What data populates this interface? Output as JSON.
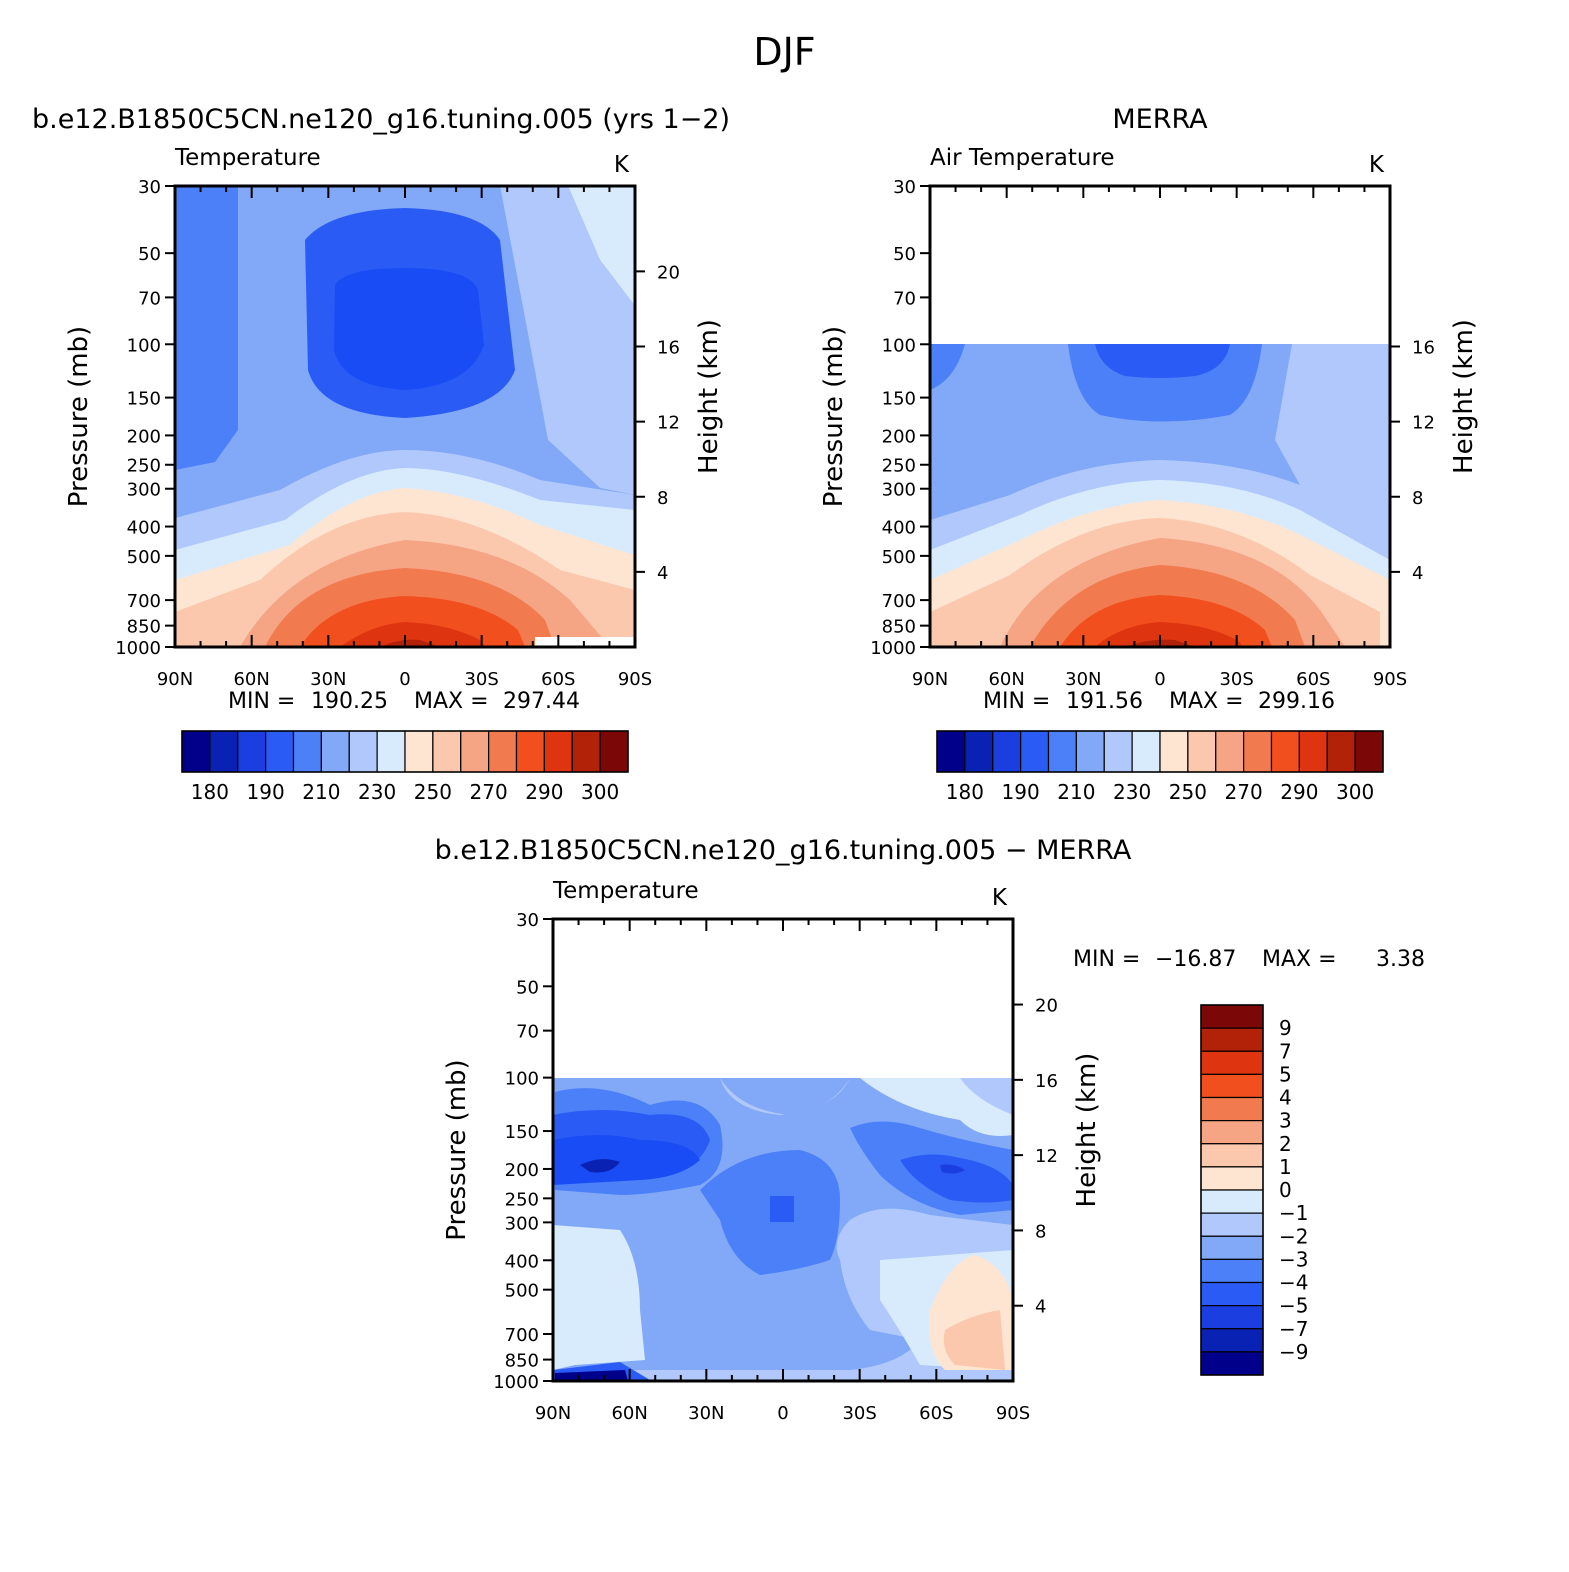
{
  "page_title": "DJF",
  "chart_data": [
    {
      "id": "model",
      "type": "heatmap",
      "subtitle": "b.e12.B1850C5CN.ne120_g16.tuning.005 (yrs 1-2)",
      "title": "Temperature",
      "units": "K",
      "xlabel": "",
      "ylabel": "Pressure (mb)",
      "y2label": "Height (km)",
      "x_ticks": [
        "90N",
        "60N",
        "30N",
        "0",
        "30S",
        "60S",
        "90S"
      ],
      "y_ticks": [
        30,
        50,
        70,
        100,
        150,
        200,
        250,
        300,
        400,
        500,
        700,
        850,
        1000
      ],
      "y2_ticks": [
        20,
        16,
        12,
        8,
        4
      ],
      "ylim": [
        30,
        1000
      ],
      "stats": {
        "min_label": "MIN =",
        "min": "190.25",
        "max_label": "MAX =",
        "max": "297.44"
      },
      "colorbar": {
        "orientation": "horizontal",
        "levels": [
          180,
          190,
          210,
          230,
          250,
          270,
          290,
          300
        ],
        "colors": [
          "#00008a",
          "#0a22b4",
          "#1a3ee0",
          "#2a5cf5",
          "#4c80f8",
          "#82a8f8",
          "#b0c8fc",
          "#d8ebfd",
          "#fde5d2",
          "#fbc8ae",
          "#f5a484",
          "#f27a4f",
          "#f24f1e",
          "#de3510",
          "#b22208",
          "#7c0707"
        ]
      }
    },
    {
      "id": "obs",
      "type": "heatmap",
      "subtitle": "MERRA",
      "title": "Air Temperature",
      "units": "K",
      "xlabel": "",
      "ylabel": "Pressure (mb)",
      "y2label": "Height (km)",
      "x_ticks": [
        "90N",
        "60N",
        "30N",
        "0",
        "30S",
        "60S",
        "90S"
      ],
      "y_ticks": [
        30,
        50,
        70,
        100,
        150,
        200,
        250,
        300,
        400,
        500,
        700,
        850,
        1000
      ],
      "y2_ticks": [
        16,
        12,
        8,
        4
      ],
      "ylim": [
        30,
        1000
      ],
      "data_top_pressure": 100,
      "stats": {
        "min_label": "MIN =",
        "min": "191.56",
        "max_label": "MAX =",
        "max": "299.16"
      },
      "colorbar": {
        "orientation": "horizontal",
        "levels": [
          180,
          190,
          210,
          230,
          250,
          270,
          290,
          300
        ],
        "colors": [
          "#00008a",
          "#0a22b4",
          "#1a3ee0",
          "#2a5cf5",
          "#4c80f8",
          "#82a8f8",
          "#b0c8fc",
          "#d8ebfd",
          "#fde5d2",
          "#fbc8ae",
          "#f5a484",
          "#f27a4f",
          "#f24f1e",
          "#de3510",
          "#b22208",
          "#7c0707"
        ]
      }
    },
    {
      "id": "diff",
      "type": "heatmap",
      "subtitle": "b.e12.B1850C5CN.ne120_g16.tuning.005 - MERRA",
      "title": "Temperature",
      "units": "K",
      "xlabel": "",
      "ylabel": "Pressure (mb)",
      "y2label": "Height (km)",
      "x_ticks": [
        "90N",
        "60N",
        "30N",
        "0",
        "30S",
        "60S",
        "90S"
      ],
      "y_ticks": [
        30,
        50,
        70,
        100,
        150,
        200,
        250,
        300,
        400,
        500,
        700,
        850,
        1000
      ],
      "y2_ticks": [
        20,
        16,
        12,
        8,
        4
      ],
      "ylim": [
        30,
        1000
      ],
      "data_top_pressure": 100,
      "stats": {
        "min_label": "MIN =",
        "min": "-16.87",
        "max_label": "MAX =",
        "max": "3.38"
      },
      "colorbar": {
        "orientation": "vertical",
        "levels": [
          "9",
          "7",
          "5",
          "4",
          "3",
          "2",
          "1",
          "0",
          "-1",
          "-2",
          "-3",
          "-4",
          "-5",
          "-7",
          "-9"
        ],
        "colors": [
          "#7c0707",
          "#b22208",
          "#de3510",
          "#f24f1e",
          "#f27a4f",
          "#f5a484",
          "#fbc8ae",
          "#fde5d2",
          "#d8ebfd",
          "#b0c8fc",
          "#82a8f8",
          "#4c80f8",
          "#2a5cf5",
          "#1a3ee0",
          "#0a22b4",
          "#00008a"
        ]
      }
    }
  ]
}
